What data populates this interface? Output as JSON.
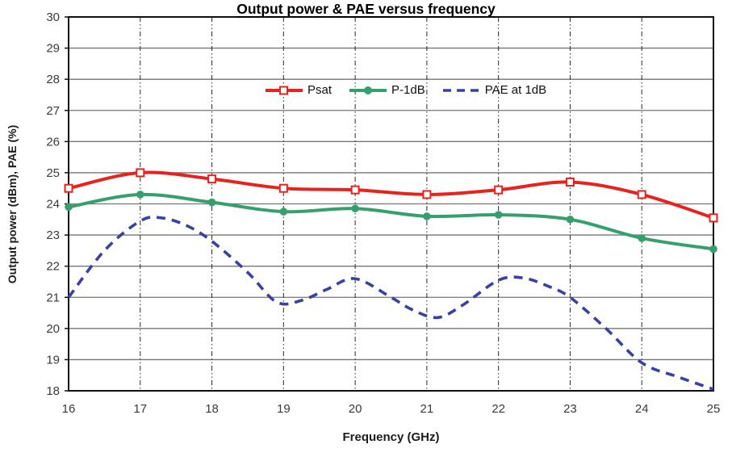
{
  "chart_data": {
    "type": "line",
    "title": "Output power & PAE versus frequency",
    "xlabel": "Frequency (GHz)",
    "ylabel": "Output power (dBm), PAE (%)",
    "xlim": [
      16,
      25
    ],
    "ylim": [
      18,
      30
    ],
    "x_ticks": [
      16,
      17,
      18,
      19,
      20,
      21,
      22,
      23,
      24,
      25
    ],
    "y_ticks": [
      18,
      19,
      20,
      21,
      22,
      23,
      24,
      25,
      26,
      27,
      28,
      29,
      30
    ],
    "grid": {
      "horizontal": "solid gray",
      "vertical": "dash-dot black"
    },
    "legend_position": "top-center-inside",
    "colors": {
      "grid_h": "#757575",
      "grid_v": "#2a2a2a",
      "border": "#111111",
      "tick_text": "#3b3b3b"
    },
    "series": [
      {
        "name": "Psat",
        "color": "#e8231d",
        "style": "solid",
        "marker": "open-square",
        "x": [
          16,
          17,
          18,
          19,
          20,
          21,
          22,
          23,
          24,
          25
        ],
        "values": [
          24.5,
          25.0,
          24.8,
          24.5,
          24.45,
          24.3,
          24.45,
          24.7,
          24.3,
          23.55
        ]
      },
      {
        "name": "P-1dB",
        "color": "#35a06d",
        "style": "solid",
        "marker": "filled-circle",
        "x": [
          16,
          17,
          18,
          19,
          20,
          21,
          22,
          23,
          24,
          25
        ],
        "values": [
          23.9,
          24.3,
          24.05,
          23.75,
          23.85,
          23.6,
          23.65,
          23.5,
          22.9,
          22.55
        ]
      },
      {
        "name": "PAE at 1dB",
        "color": "#3a41a5",
        "style": "dashed",
        "marker": "none",
        "x": [
          16,
          16.5,
          17,
          17.3,
          17.65,
          18,
          18.5,
          18.9,
          19.25,
          19.6,
          20,
          20.5,
          20.8,
          21.15,
          21.5,
          22,
          22.35,
          22.7,
          23,
          23.5,
          24,
          24.5,
          25
        ],
        "values": [
          21.0,
          22.5,
          23.45,
          23.55,
          23.3,
          22.8,
          21.8,
          20.85,
          20.9,
          21.25,
          21.6,
          21.0,
          20.6,
          20.35,
          20.75,
          21.55,
          21.62,
          21.35,
          21.0,
          20.0,
          18.9,
          18.45,
          18.05
        ]
      }
    ]
  }
}
